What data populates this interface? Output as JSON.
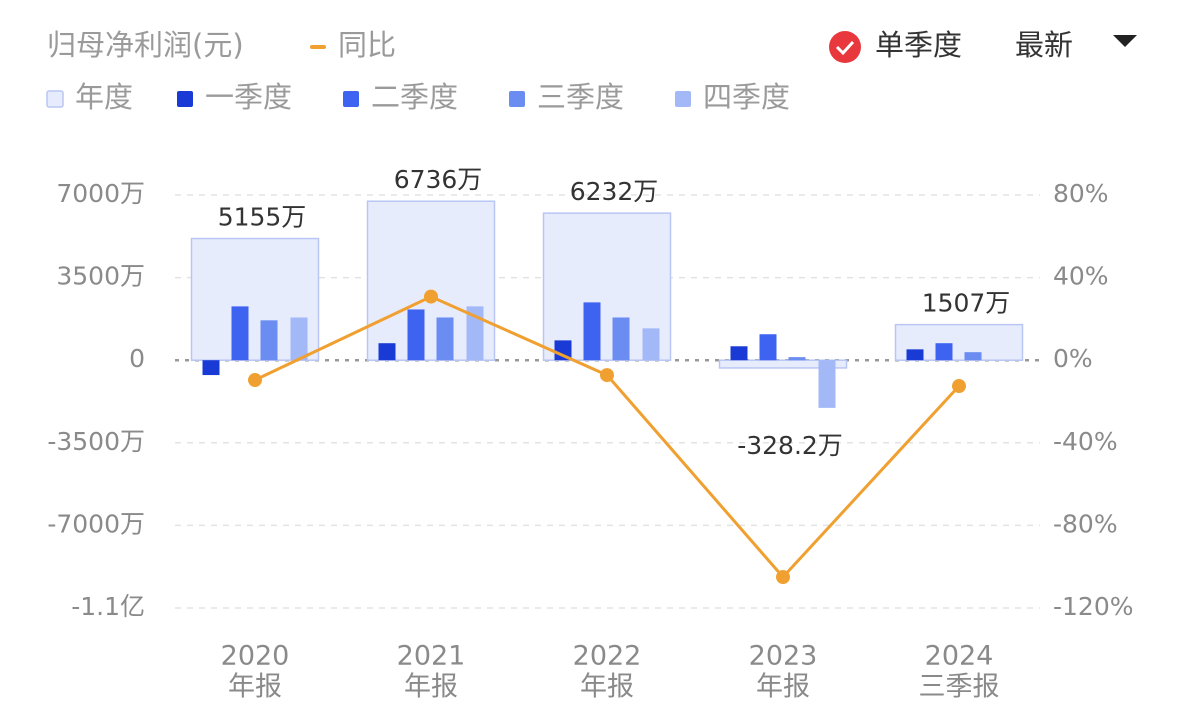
{
  "chart_data": {
    "type": "bar",
    "title": "归母净利润(元)",
    "categories": [
      [
        "2020",
        "年报"
      ],
      [
        "2021",
        "年报"
      ],
      [
        "2022",
        "年报"
      ],
      [
        "2023",
        "年报"
      ],
      [
        "2024",
        "三季报"
      ]
    ],
    "series": [
      {
        "name": "年度",
        "color": "#e7ecfd",
        "edge_color": "#b9c6f3",
        "values": [
          5155,
          6736,
          6232,
          -328.2,
          1507
        ],
        "value_labels": [
          "5155万",
          "6736万",
          "6232万",
          "-328.2万",
          "1507万"
        ]
      },
      {
        "name": "一季度",
        "color": "#1a3ad6",
        "values": [
          -630,
          720,
          840,
          590,
          460
        ]
      },
      {
        "name": "二季度",
        "color": "#3d63f0",
        "values": [
          2280,
          2150,
          2450,
          1100,
          720
        ]
      },
      {
        "name": "三季度",
        "color": "#6b8df2",
        "values": [
          1690,
          1810,
          1810,
          130,
          340
        ]
      },
      {
        "name": "四季度",
        "color": "#a3b8f7",
        "values": [
          1810,
          2280,
          1350,
          -2020,
          null
        ]
      },
      {
        "name": "同比",
        "type": "line",
        "axis": "y2",
        "color": "#f0a030",
        "values": [
          -9.6,
          30.8,
          -7.2,
          -105,
          -12.5
        ]
      }
    ],
    "ylim": [
      -10500,
      7000
    ],
    "yticks": [
      {
        "value": 7000,
        "label": "7000万"
      },
      {
        "value": 3500,
        "label": "3500万"
      },
      0,
      {
        "value": -3500,
        "label": "-3500万"
      },
      {
        "value": -7000,
        "label": "-7000万"
      },
      {
        "value": -10500,
        "label": "-1.1亿"
      }
    ],
    "y2lim": [
      -120,
      80
    ],
    "y2ticks": [
      {
        "value": 80,
        "label": "80%"
      },
      {
        "value": 40,
        "label": "40%"
      },
      {
        "value": 0,
        "label": "0%"
      },
      {
        "value": -40,
        "label": "-40%"
      },
      {
        "value": -80,
        "label": "-80%"
      },
      {
        "value": -120,
        "label": "-120%"
      }
    ],
    "grid": true
  },
  "controls": {
    "toggle": "单季度",
    "toggle_checked": true,
    "dropdown": "最新"
  }
}
